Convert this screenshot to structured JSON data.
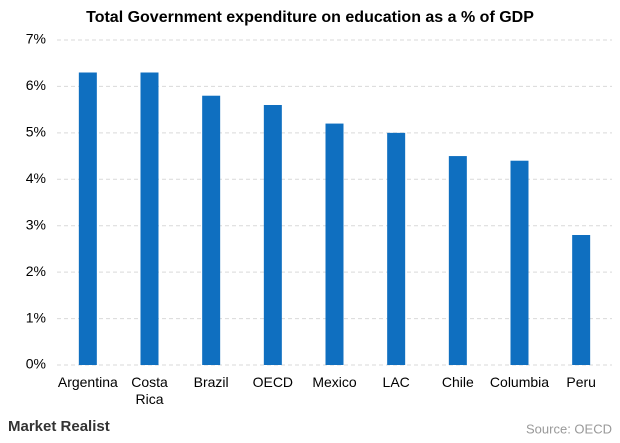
{
  "chart_data": {
    "type": "bar",
    "title": "Total Government expenditure on education as a % of GDP",
    "categories": [
      "Argentina",
      "Costa Rica",
      "Brazil",
      "OECD",
      "Mexico",
      "LAC",
      "Chile",
      "Columbia",
      "Peru"
    ],
    "values": [
      6.3,
      6.3,
      5.8,
      5.6,
      5.2,
      5.0,
      4.5,
      4.4,
      2.8
    ],
    "color": "#0f6fc0",
    "ylim": [
      0,
      7
    ],
    "yticks": [
      {
        "value": 0,
        "label": "0%"
      },
      {
        "value": 1,
        "label": "1%"
      },
      {
        "value": 2,
        "label": "2%"
      },
      {
        "value": 3,
        "label": "3%"
      },
      {
        "value": 4,
        "label": "4%"
      },
      {
        "value": 5,
        "label": "5%"
      },
      {
        "value": 6,
        "label": "6%"
      },
      {
        "value": 7,
        "label": "7%"
      }
    ],
    "grid": true,
    "logo": "Market Realist",
    "source": "Source: OECD"
  }
}
